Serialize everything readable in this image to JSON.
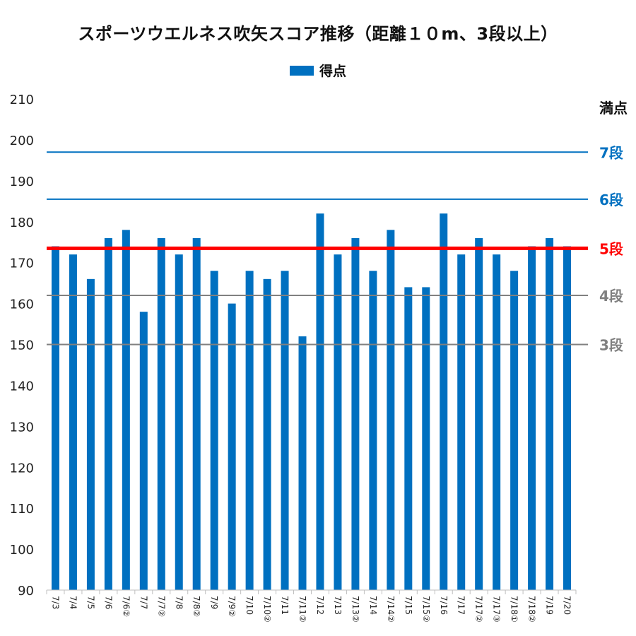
{
  "chart_data": {
    "type": "bar",
    "title": "スポーツウエルネス吹矢スコア推移（距離１０m、3段以上）",
    "legend": {
      "label": "得点",
      "placement": "top"
    },
    "categories": [
      "7/3",
      "7/4",
      "7/5",
      "7/6",
      "7/6②",
      "7/7",
      "7/7②",
      "7/8",
      "7/8②",
      "7/9",
      "7/9②",
      "7/10",
      "7/10②",
      "7/11",
      "7/11②",
      "7/12",
      "7/13",
      "7/13②",
      "7/14",
      "7/14②",
      "7/15",
      "7/15②",
      "7/16",
      "7/17",
      "7/17②",
      "7/17③",
      "7/18①",
      "7/18②",
      "7/19",
      "7/20"
    ],
    "series": [
      {
        "name": "得点",
        "color": "#0070c0",
        "values": [
          174,
          172,
          166,
          176,
          178,
          158,
          176,
          172,
          176,
          168,
          160,
          168,
          166,
          168,
          152,
          182,
          172,
          176,
          168,
          178,
          164,
          164,
          182,
          172,
          176,
          172,
          168,
          174,
          176,
          174
        ]
      }
    ],
    "ylim": [
      90,
      210
    ],
    "yticks": [
      90,
      100,
      110,
      120,
      130,
      140,
      150,
      160,
      170,
      180,
      190,
      200,
      210
    ],
    "grid": false,
    "reference_lines": [
      {
        "label": "満点",
        "value": 210,
        "color": "#111111",
        "line": false
      },
      {
        "label": "7段",
        "value": 197,
        "color": "#0070c0",
        "line": true
      },
      {
        "label": "6段",
        "value": 185.5,
        "color": "#0070c0",
        "line": true
      },
      {
        "label": "5段",
        "value": 173.5,
        "color": "#ff0000",
        "line": true
      },
      {
        "label": "4段",
        "value": 162,
        "color": "#808080",
        "line": true
      },
      {
        "label": "3段",
        "value": 150,
        "color": "#808080",
        "line": true
      }
    ]
  }
}
